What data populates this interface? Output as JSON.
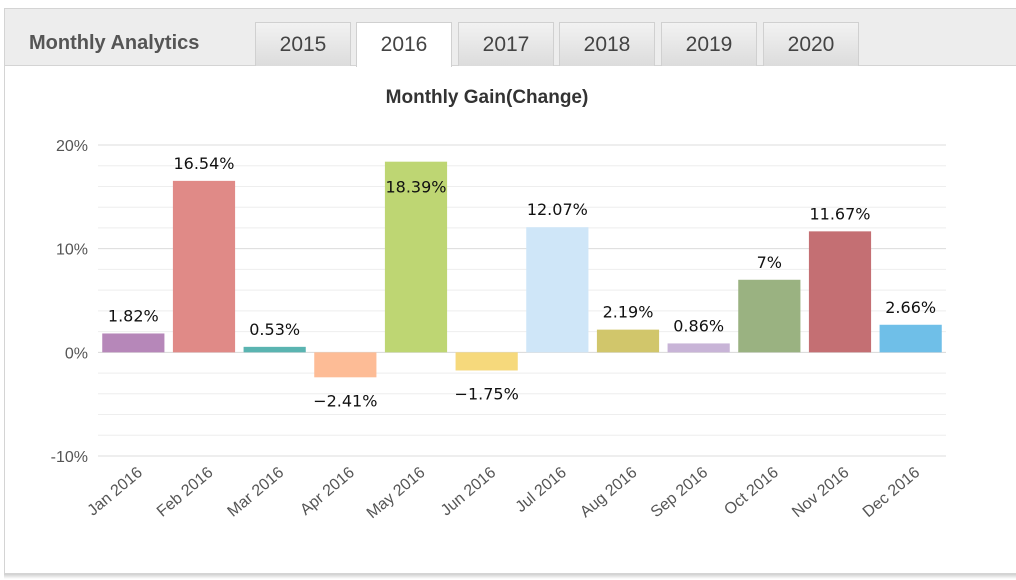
{
  "panel_title": "Monthly Analytics",
  "tabs": [
    {
      "label": "2015",
      "active": false
    },
    {
      "label": "2016",
      "active": true
    },
    {
      "label": "2017",
      "active": false
    },
    {
      "label": "2018",
      "active": false
    },
    {
      "label": "2019",
      "active": false
    },
    {
      "label": "2020",
      "active": false
    }
  ],
  "chart_data": {
    "type": "bar",
    "title": "Monthly Gain(Change)",
    "xlabel": "",
    "ylabel": "",
    "ylim": [
      -10,
      20
    ],
    "yticks": [
      20,
      10,
      0,
      -10
    ],
    "ytick_labels": [
      "20%",
      "10%",
      "0%",
      "-10%"
    ],
    "grid": true,
    "categories": [
      "Jan 2016",
      "Feb 2016",
      "Mar 2016",
      "Apr 2016",
      "May 2016",
      "Jun 2016",
      "Jul 2016",
      "Aug 2016",
      "Sep 2016",
      "Oct 2016",
      "Nov 2016",
      "Dec 2016"
    ],
    "values": [
      1.82,
      16.54,
      0.53,
      -2.41,
      18.39,
      -1.75,
      12.07,
      2.19,
      0.86,
      7,
      11.67,
      2.66
    ],
    "data_labels": [
      "1.82%",
      "16.54%",
      "0.53%",
      "−2.41%",
      "18.39%",
      "−1.75%",
      "12.07%",
      "2.19%",
      "0.86%",
      "7%",
      "11.67%",
      "2.66%"
    ],
    "colors": [
      "#b687b9",
      "#e08a87",
      "#5ab4b1",
      "#fdbc96",
      "#bed673",
      "#f6d97c",
      "#cfe6f8",
      "#d1c66b",
      "#c8b4d7",
      "#9ab281",
      "#c46f73",
      "#6fbfe8"
    ]
  }
}
